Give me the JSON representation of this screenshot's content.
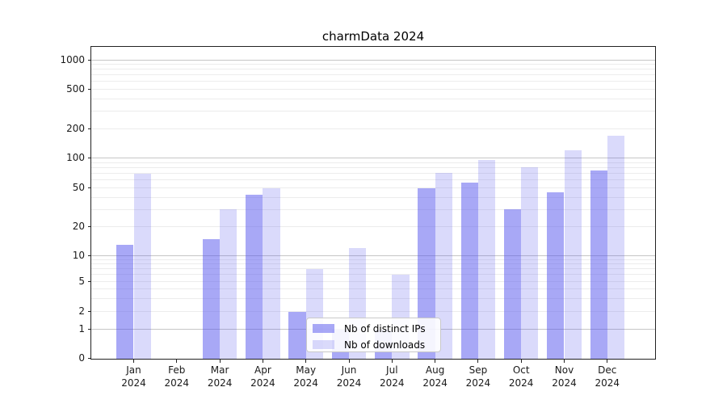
{
  "title": "charmData 2024",
  "chart_data": {
    "type": "bar",
    "title": "charmData 2024",
    "categories": [
      "Jan",
      "Feb",
      "Mar",
      "Apr",
      "May",
      "Jun",
      "Jul",
      "Aug",
      "Sep",
      "Oct",
      "Nov",
      "Dec"
    ],
    "year_label": "2024",
    "series": [
      {
        "name": "Nb of distinct IPs",
        "values": [
          13,
          0,
          15,
          43,
          2,
          1,
          1,
          50,
          57,
          30,
          45,
          75
        ]
      },
      {
        "name": "Nb of downloads",
        "values": [
          70,
          0,
          30,
          50,
          7,
          12,
          6,
          71,
          95,
          80,
          120,
          170
        ]
      }
    ],
    "y_ticks": [
      0,
      1,
      2,
      5,
      10,
      20,
      50,
      100,
      200,
      500,
      1000
    ],
    "y_tick_labels": [
      "0",
      "1",
      "2",
      "5",
      "10",
      "20",
      "50",
      "100",
      "200",
      "500",
      "1000"
    ],
    "y_scale": "symlog",
    "ylim": [
      0,
      1350
    ],
    "grid": true,
    "legend_position": "lower center"
  },
  "legend": {
    "items": [
      {
        "label": "Nb of distinct IPs"
      },
      {
        "label": "Nb of downloads"
      }
    ]
  },
  "colors": {
    "bar_base": "#5252ee",
    "ips_fill": "rgba(82,82,238,0.5)",
    "downloads_fill": "rgba(82,82,238,0.21)",
    "major_grid": "#c6c6c6",
    "minor_grid": "#ececec",
    "spine": "#222222",
    "text": "#1a1a1a"
  }
}
